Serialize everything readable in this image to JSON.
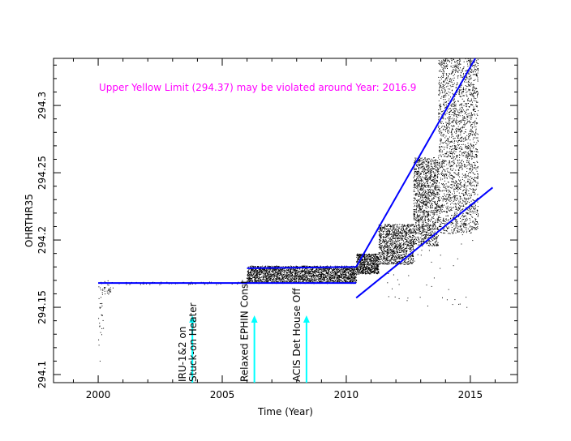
{
  "chart_data": {
    "type": "scatter",
    "title": "",
    "xlabel": "Time (Year)",
    "ylabel": "OHRTHR35",
    "xlim": [
      1998.2,
      2016.9
    ],
    "ylim": [
      294.094,
      294.335
    ],
    "x_ticks": [
      2000,
      2005,
      2010,
      2015
    ],
    "x_tick_labels": [
      "2000",
      "2005",
      "2010",
      "2015"
    ],
    "y_ticks": [
      294.1,
      294.15,
      294.2,
      294.25,
      294.3
    ],
    "y_tick_labels": [
      "294.1",
      "294.15",
      "294.2",
      "294.25",
      "294.3"
    ],
    "grid": false,
    "limit_message": "Upper Yellow  Limit (294.37) may be violated around Year: 2016.9",
    "limit_message_color": "#ff00ff",
    "trend_color": "#0000ff",
    "point_color": "#000000",
    "annotation_arrow_color": "#00ffff",
    "annotations": [
      {
        "x": 2003.6,
        "lines": [
          "IRU-1&2 on",
          "Stuck-on Heater"
        ]
      },
      {
        "x": 2006.1,
        "lines": [
          "Relaxed EPHIN Const."
        ]
      },
      {
        "x": 2008.2,
        "lines": [
          "ACIS Det House Off"
        ]
      }
    ],
    "trend_lines": [
      {
        "name": "",
        "points": [
          [
            2000.0,
            294.168
          ],
          [
            2010.4,
            294.168
          ]
        ]
      },
      {
        "name": "",
        "points": [
          [
            2006.0,
            294.179
          ],
          [
            2010.4,
            294.18
          ]
        ]
      },
      {
        "name": "",
        "points": [
          [
            2010.4,
            294.18
          ],
          [
            2015.2,
            294.335
          ]
        ]
      },
      {
        "name": "",
        "points": [
          [
            2010.4,
            294.157
          ],
          [
            2015.9,
            294.239
          ]
        ]
      }
    ],
    "data_regions": [
      {
        "x": [
          2000.0,
          2000.6
        ],
        "y": [
          294.16,
          294.17
        ],
        "density": 40
      },
      {
        "x": [
          2000.0,
          2000.2
        ],
        "y": [
          294.11,
          294.16
        ],
        "density": 25
      },
      {
        "x": [
          2000.6,
          2006.0
        ],
        "y": [
          294.167,
          294.169
        ],
        "density": 60
      },
      {
        "x": [
          2006.0,
          2010.4
        ],
        "y": [
          294.168,
          294.181
        ],
        "density": 2500
      },
      {
        "x": [
          2010.4,
          2011.3
        ],
        "y": [
          294.175,
          294.19
        ],
        "density": 700
      },
      {
        "x": [
          2011.3,
          2012.7
        ],
        "y": [
          294.182,
          294.212
        ],
        "density": 1100
      },
      {
        "x": [
          2012.7,
          2013.7
        ],
        "y": [
          294.196,
          294.262
        ],
        "density": 1300
      },
      {
        "x": [
          2013.7,
          2015.3
        ],
        "y": [
          294.205,
          294.335
        ],
        "density": 2200
      },
      {
        "x": [
          2011.5,
          2015.1
        ],
        "y": [
          294.15,
          294.21
        ],
        "density": 60
      }
    ]
  }
}
